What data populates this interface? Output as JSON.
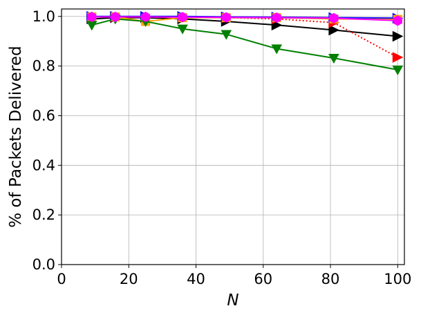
{
  "chart_data": {
    "type": "line",
    "xlabel": "N",
    "ylabel": "% of Packets Delivered",
    "xlim": [
      0,
      102
    ],
    "ylim": [
      0,
      1.03
    ],
    "xticks": [
      "0",
      "20",
      "40",
      "60",
      "80",
      "100"
    ],
    "yticks": [
      "0.0",
      "0.2",
      "0.4",
      "0.6",
      "0.8",
      "1.0"
    ],
    "grid": true,
    "legend": "none",
    "x": [
      9,
      16,
      25,
      36,
      49,
      64,
      81,
      100
    ],
    "series": [
      {
        "color": "#000000",
        "marker": "triangle-right",
        "linestyle": "solid",
        "values": [
          0.99,
          0.995,
          0.995,
          0.99,
          0.98,
          0.965,
          0.945,
          0.92
        ]
      },
      {
        "color": "#ff0000",
        "marker": "triangle-right",
        "linestyle": "dotted",
        "values": [
          0.998,
          0.998,
          0.998,
          0.997,
          0.995,
          0.99,
          0.975,
          0.835
        ]
      },
      {
        "color": "#0000ff",
        "marker": "triangle-right",
        "linestyle": "solid",
        "values": [
          1.0,
          1.0,
          1.0,
          1.0,
          0.998,
          0.997,
          0.995,
          0.993
        ]
      },
      {
        "color": "#ffa500",
        "marker": "square",
        "linestyle": "solid",
        "values": [
          0.998,
          0.998,
          0.98,
          0.995,
          0.995,
          0.995,
          0.99,
          0.988
        ]
      },
      {
        "color": "#008000",
        "marker": "triangle-down",
        "linestyle": "solid",
        "values": [
          0.965,
          0.99,
          0.98,
          0.95,
          0.928,
          0.87,
          0.832,
          0.785
        ]
      },
      {
        "color": "#ff00ff",
        "marker": "hexagon",
        "linestyle": "solid",
        "values": [
          0.998,
          0.998,
          0.998,
          0.997,
          0.996,
          0.995,
          0.993,
          0.983
        ]
      }
    ]
  }
}
